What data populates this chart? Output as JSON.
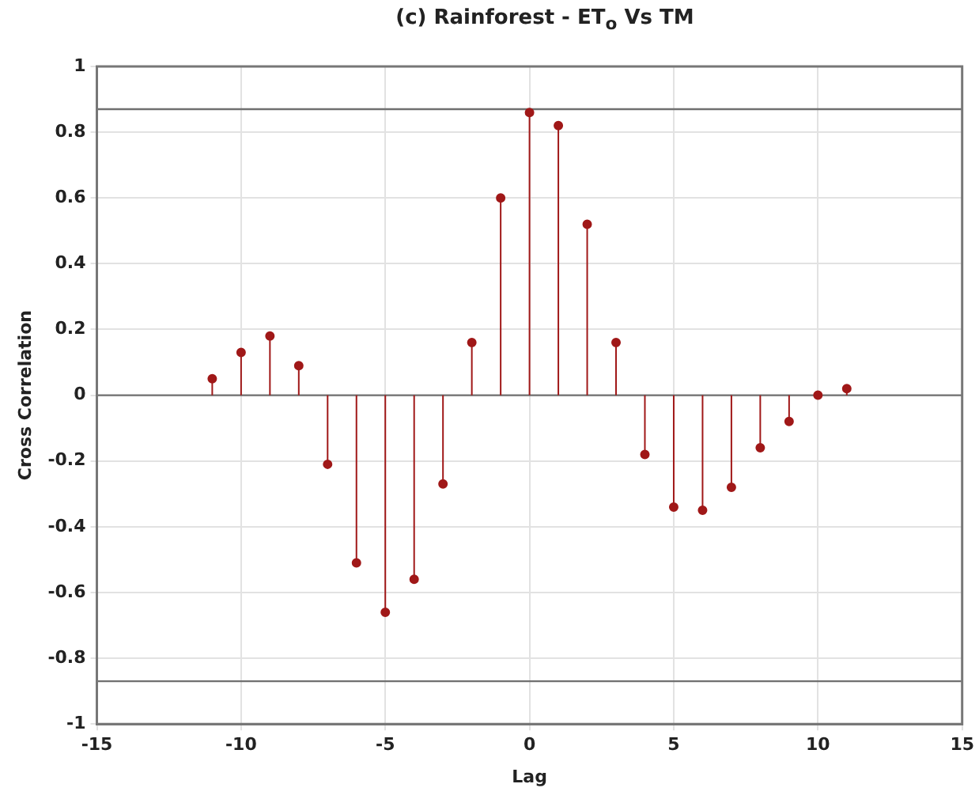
{
  "chart_data": {
    "type": "lollipop",
    "title": "(c)   Rainforest - ET$_{o}$ Vs TM",
    "xlabel": "Lag",
    "ylabel": "Cross Correlation",
    "x": [
      -11,
      -10,
      -9,
      -8,
      -7,
      -6,
      -5,
      -4,
      -3,
      -2,
      -1,
      0,
      1,
      2,
      3,
      4,
      5,
      6,
      7,
      8,
      9,
      10,
      11
    ],
    "series": [
      {
        "color": "#a01818",
        "values": [
          0.05,
          0.13,
          0.18,
          0.09,
          -0.21,
          -0.51,
          -0.66,
          -0.56,
          -0.27,
          0.16,
          0.6,
          0.86,
          0.82,
          0.52,
          0.16,
          -0.18,
          -0.34,
          -0.35,
          -0.28,
          -0.16,
          -0.08,
          0.0,
          0.02
        ]
      }
    ],
    "xlim": [
      -15,
      15
    ],
    "xticks": [
      -15,
      -10,
      -5,
      0,
      5,
      10,
      15
    ],
    "ylim": [
      -1,
      1
    ],
    "yticks": [
      -1,
      -0.8,
      -0.6,
      -0.4,
      -0.2,
      0,
      0.2,
      0.4,
      0.6,
      0.8,
      1
    ],
    "ref_lines": [
      {
        "axis": "y",
        "value": 0.87,
        "color": "#707070"
      },
      {
        "axis": "y",
        "value": -0.87,
        "color": "#707070"
      },
      {
        "axis": "y",
        "value": 0,
        "color": "#707070"
      }
    ],
    "grid": true,
    "legend": false,
    "marker": "circle"
  }
}
